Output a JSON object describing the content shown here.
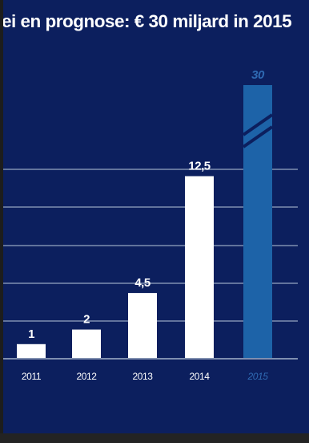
{
  "chart_data": {
    "type": "bar",
    "title": "ei en prognose: € 30 miljard in 2015",
    "xlabel": "",
    "ylabel": "",
    "categories": [
      "2011",
      "2012",
      "2013",
      "2014",
      "2015"
    ],
    "values": [
      1,
      2,
      4.5,
      12.5,
      30
    ],
    "value_labels": [
      "1",
      "2",
      "4,5",
      "12,5",
      "30"
    ],
    "forecast_category": "2015",
    "axis_break_on": "2015",
    "grid": true,
    "colors": {
      "background": "#0c1f5e",
      "bar": "#ffffff",
      "forecast_bar": "#1d63a8",
      "forecast_text": "#2f6ab3",
      "grid": "#7f8fb0",
      "text": "#ffffff"
    }
  }
}
